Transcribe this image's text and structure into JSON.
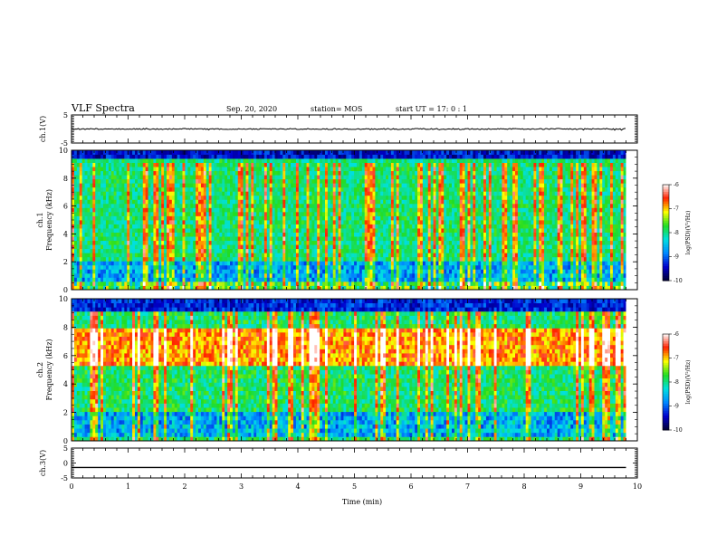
{
  "header": {
    "title": "VLF Spectra",
    "date": "Sep. 20, 2020",
    "station": "station= MOS",
    "start": "start  UT =   17: 0  : 1"
  },
  "chart_data": [
    {
      "type": "line",
      "panel": "ch1-waveform",
      "ylabel": "ch.1(V)",
      "xlim": [
        0,
        10
      ],
      "ylim": [
        -5,
        5
      ],
      "yticks": [
        "5",
        "-5"
      ],
      "series": [
        {
          "x": [
            0,
            9.8
          ],
          "values": [
            0,
            0
          ]
        }
      ]
    },
    {
      "type": "heatmap",
      "panel": "ch1-spectrogram",
      "ylabel": "ch.1\nFrequency (kHz)",
      "ylabel_line1": "ch.1",
      "ylabel_line2": "Frequency (kHz)",
      "xlim": [
        0,
        10
      ],
      "ylim": [
        0,
        10
      ],
      "yticks": [
        "0",
        "2",
        "4",
        "6",
        "8",
        "10"
      ],
      "data_x_end": 9.8,
      "colorbar": {
        "label": "log(PSD)(V²/Hz)",
        "range": [
          -10,
          -6
        ],
        "ticks": [
          "-6",
          "-7",
          "-8",
          "-9",
          "-10"
        ]
      }
    },
    {
      "type": "heatmap",
      "panel": "ch2-spectrogram",
      "ylabel": "ch.2\nFrequency (kHz)",
      "ylabel_line1": "ch.2",
      "ylabel_line2": "Frequency (kHz)",
      "xlim": [
        0,
        10
      ],
      "ylim": [
        0,
        10
      ],
      "yticks": [
        "0",
        "2",
        "4",
        "6",
        "8",
        "10"
      ],
      "data_x_end": 9.8,
      "colorbar": {
        "label": "log(PSD)(V²/Hz)",
        "range": [
          -10,
          -6
        ],
        "ticks": [
          "-6",
          "-7",
          "-8",
          "-9",
          "-10"
        ]
      }
    },
    {
      "type": "line",
      "panel": "ch3-waveform",
      "ylabel": "ch.3(V)",
      "xlim": [
        0,
        10
      ],
      "ylim": [
        -5,
        5
      ],
      "yticks": [
        "5",
        "0",
        "-5"
      ],
      "series": [
        {
          "x": [
            0,
            9.8
          ],
          "values": [
            -1.5,
            -1.5
          ]
        }
      ]
    }
  ],
  "xaxis": {
    "label": "Time  (min)",
    "ticks": [
      "0",
      "1",
      "2",
      "3",
      "4",
      "5",
      "6",
      "7",
      "8",
      "9",
      "10"
    ]
  },
  "colors": {
    "colormap": [
      "#000033",
      "#0000cc",
      "#0088ff",
      "#00e0e0",
      "#22dd22",
      "#ffff00",
      "#ff2200",
      "#ffffff"
    ]
  }
}
